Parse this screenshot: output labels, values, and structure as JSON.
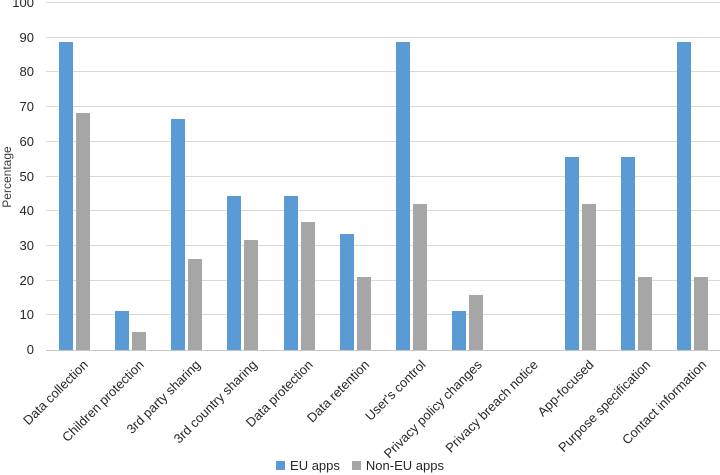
{
  "chart_data": {
    "type": "bar",
    "title": "",
    "xlabel": "",
    "ylabel": "Percentage",
    "ylim": [
      0,
      100
    ],
    "ytick_step": 10,
    "grid": true,
    "legend_position": "bottom",
    "categories": [
      "Data collection",
      "Children protection",
      "3rd party sharing",
      "3rd country sharing",
      "Data protection",
      "Data retention",
      "User's control",
      "Privacy policy changes",
      "Privacy breach notice",
      "App-focused",
      "Purpose specification",
      "Contact information"
    ],
    "series": [
      {
        "name": "EU apps",
        "color": "#5B9BD5",
        "values": [
          88.9,
          11.1,
          66.7,
          44.4,
          44.4,
          33.3,
          88.9,
          11.1,
          0,
          55.6,
          55.6,
          88.9
        ]
      },
      {
        "name": "Non-EU apps",
        "color": "#A6A6A6",
        "values": [
          68.4,
          5.3,
          26.3,
          31.6,
          36.8,
          21.1,
          42.1,
          15.8,
          0,
          42.1,
          21.1,
          21.1
        ]
      }
    ],
    "colors": {
      "gridline": "#d9d9d9",
      "axis_line": "#c6c6c6",
      "text": "#262626"
    }
  }
}
